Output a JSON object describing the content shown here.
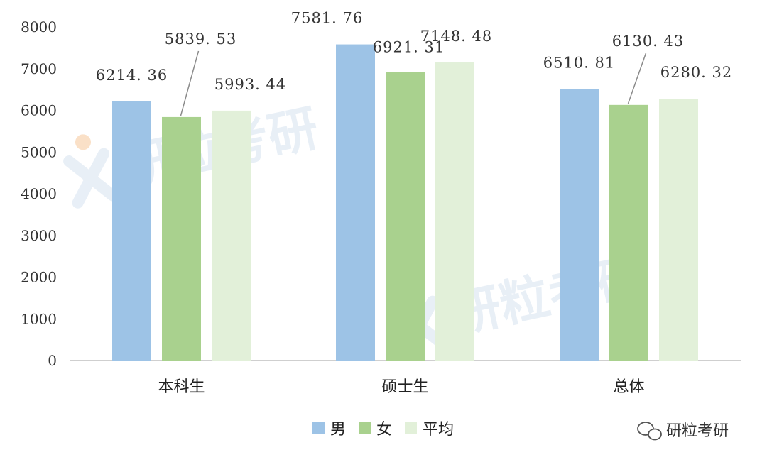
{
  "chart_data": {
    "type": "bar",
    "categories": [
      "本科生",
      "硕士生",
      "总体"
    ],
    "series": [
      {
        "name": "男",
        "values": [
          6214.36,
          7581.76,
          6510.81
        ],
        "color": "#9dc3e6"
      },
      {
        "name": "女",
        "values": [
          5839.53,
          6921.31,
          6130.43
        ],
        "color": "#a9d18e"
      },
      {
        "name": "平均",
        "values": [
          5993.44,
          7148.48,
          6280.32
        ],
        "color": "#e2f0d9"
      }
    ],
    "value_labels": [
      [
        "6214. 36",
        "5839. 53",
        "5993. 44"
      ],
      [
        "7581. 76",
        "6921. 31",
        "7148. 48"
      ],
      [
        "6510. 81",
        "6130. 43",
        "6280. 32"
      ]
    ],
    "yticks": [
      "0",
      "1000",
      "2000",
      "3000",
      "4000",
      "5000",
      "6000",
      "7000",
      "8000"
    ],
    "ylim": [
      0,
      8000
    ],
    "legend_position": "bottom"
  },
  "watermark": {
    "text": "研粒考研",
    "color": "#d6e2f0",
    "accent_color": "#f6c89a"
  },
  "footer": {
    "account_name": "研粒考研"
  }
}
